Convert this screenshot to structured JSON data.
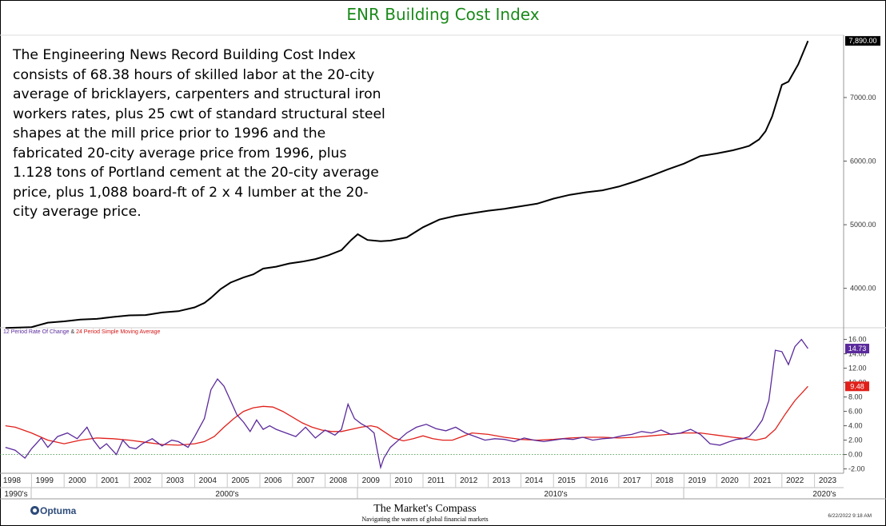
{
  "title": "ENR Building Cost Index",
  "description": "The Engineering News Record Building Cost Index consists of 68.38 hours of skilled labor at the 20-city average of bricklayers, carpenters and structural iron workers rates, plus 25 cwt of standard structural steel shapes at the mill price prior to 1996 and the fabricated 20-city average price from 1996, plus 1.128 tons of Portland cement at the 20-city average price, plus 1,088 board-ft of 2 x 4 lumber at the 20-city average price.",
  "indicator_label": {
    "part1": "12 Period Rate Of Change",
    "amp": " & ",
    "part2": "24 Period Simple Moving Average"
  },
  "footer": {
    "logo": "Optuma",
    "brand": "The Market's Compass",
    "tagline": "Navigating the waters of global financial markets",
    "timestamp": "6/22/2022 9:18 AM"
  },
  "colors": {
    "price": "#000000",
    "roc": "#5b2a9c",
    "sma": "#e0201a",
    "title": "#1a8a1a",
    "zero": "#2e8b2e"
  },
  "chart_data": [
    {
      "type": "line",
      "name": "price-panel",
      "ylim": [
        3380,
        7980
      ],
      "y_ticks": [
        4000,
        5000,
        6000,
        7000
      ],
      "y_tick_labels": [
        "4000.00",
        "5000.00",
        "6000.00",
        "7000.00"
      ],
      "last_value_label": "7,890.00",
      "x": [
        1997.7,
        1998.5,
        1999.0,
        1999.5,
        2000.0,
        2000.5,
        2001.0,
        2001.5,
        2002.0,
        2002.5,
        2003.0,
        2003.5,
        2003.8,
        2004.0,
        2004.3,
        2004.6,
        2005.0,
        2005.3,
        2005.6,
        2006.0,
        2006.4,
        2006.8,
        2007.2,
        2007.6,
        2008.0,
        2008.3,
        2008.5,
        2008.8,
        2009.2,
        2009.5,
        2009.8,
        2010.0,
        2010.5,
        2011.0,
        2011.5,
        2012.0,
        2012.5,
        2013.0,
        2013.5,
        2014.0,
        2014.5,
        2015.0,
        2015.5,
        2016.0,
        2016.5,
        2017.0,
        2017.5,
        2018.0,
        2018.5,
        2019.0,
        2019.5,
        2020.0,
        2020.3,
        2020.5,
        2020.8,
        2021.0,
        2021.2,
        2021.5,
        2021.7,
        2022.0,
        2022.3
      ],
      "y": [
        3377,
        3390,
        3460,
        3480,
        3510,
        3520,
        3550,
        3575,
        3580,
        3620,
        3640,
        3700,
        3770,
        3850,
        3990,
        4090,
        4170,
        4220,
        4310,
        4340,
        4390,
        4420,
        4460,
        4520,
        4600,
        4760,
        4850,
        4760,
        4740,
        4750,
        4780,
        4800,
        4960,
        5080,
        5140,
        5180,
        5220,
        5250,
        5290,
        5330,
        5410,
        5470,
        5510,
        5540,
        5600,
        5680,
        5770,
        5870,
        5960,
        6080,
        6120,
        6170,
        6210,
        6240,
        6340,
        6470,
        6700,
        7200,
        7250,
        7520,
        7890
      ]
    },
    {
      "type": "line",
      "name": "indicator-panel",
      "ylim": [
        -2.6,
        17.4
      ],
      "y_ticks": [
        -2,
        0,
        2,
        4,
        6,
        8,
        10,
        12,
        14,
        16
      ],
      "y_tick_labels": [
        "-2.00",
        "0.00",
        "2.00",
        "4.00",
        "6.00",
        "8.00",
        "10.00",
        "12.00",
        "14.00",
        "16.00"
      ],
      "roc_label": "14.73",
      "sma_label": "9.48",
      "series": [
        {
          "x": [
            1997.7,
            1998.0,
            1998.3,
            1998.5,
            1998.8,
            1999.0,
            1999.3,
            1999.6,
            1999.9,
            2000.2,
            2000.4,
            2000.6,
            2000.8,
            2001.0,
            2001.1,
            2001.3,
            2001.5,
            2001.7,
            2001.9,
            2002.2,
            2002.5,
            2002.8,
            2003.0,
            2003.3,
            2003.5,
            2003.8,
            2004.0,
            2004.2,
            2004.4,
            2004.6,
            2004.8,
            2005.0,
            2005.2,
            2005.4,
            2005.6,
            2005.8,
            2006.0,
            2006.3,
            2006.6,
            2006.9,
            2007.2,
            2007.5,
            2007.8,
            2008.0,
            2008.2,
            2008.4,
            2008.6,
            2008.8,
            2009.0,
            2009.1,
            2009.2,
            2009.3,
            2009.5,
            2009.8,
            2010.0,
            2010.3,
            2010.6,
            2010.9,
            2011.2,
            2011.5,
            2011.8,
            2012.1,
            2012.4,
            2012.7,
            2013.0,
            2013.3,
            2013.6,
            2013.9,
            2014.2,
            2014.5,
            2014.8,
            2015.1,
            2015.4,
            2015.7,
            2016.0,
            2016.3,
            2016.6,
            2016.9,
            2017.2,
            2017.5,
            2017.8,
            2018.1,
            2018.4,
            2018.7,
            2019.0,
            2019.3,
            2019.6,
            2019.9,
            2020.1,
            2020.3,
            2020.5,
            2020.7,
            2020.9,
            2021.1,
            2021.3,
            2021.5,
            2021.7,
            2021.9,
            2022.1,
            2022.3
          ],
          "y": [
            1.0,
            0.6,
            -0.5,
            0.8,
            2.3,
            1.0,
            2.5,
            3.0,
            2.2,
            3.8,
            2.0,
            0.8,
            1.5,
            0.5,
            0.0,
            2.0,
            1.0,
            0.8,
            1.5,
            2.2,
            1.2,
            2.0,
            1.8,
            1.0,
            2.5,
            5.0,
            9.0,
            10.5,
            9.5,
            7.5,
            5.5,
            4.5,
            3.2,
            4.8,
            3.5,
            4.0,
            3.5,
            3.0,
            2.5,
            3.8,
            2.3,
            3.4,
            2.7,
            3.5,
            7.0,
            5.0,
            4.3,
            3.8,
            3.0,
            0.5,
            -1.8,
            -0.5,
            1.0,
            2.2,
            3.0,
            3.8,
            4.2,
            3.6,
            3.3,
            3.8,
            3.0,
            2.5,
            2.0,
            2.2,
            2.1,
            1.8,
            2.3,
            2.0,
            1.8,
            2.0,
            2.2,
            2.1,
            2.4,
            2.0,
            2.2,
            2.3,
            2.6,
            2.8,
            3.2,
            3.0,
            3.4,
            2.8,
            3.0,
            3.5,
            2.8,
            1.5,
            1.3,
            1.8,
            2.1,
            2.2,
            2.5,
            3.5,
            4.8,
            7.5,
            14.5,
            14.3,
            12.5,
            15.0,
            16.0,
            14.73
          ]
        },
        {
          "x": [
            1997.7,
            1998.0,
            1998.5,
            1999.0,
            1999.5,
            2000.0,
            2000.5,
            2001.0,
            2001.5,
            2002.0,
            2002.5,
            2003.0,
            2003.5,
            2003.8,
            2004.1,
            2004.4,
            2004.7,
            2005.0,
            2005.3,
            2005.6,
            2005.9,
            2006.2,
            2006.5,
            2006.8,
            2007.1,
            2007.4,
            2007.7,
            2008.0,
            2008.3,
            2008.6,
            2008.9,
            2009.1,
            2009.3,
            2009.6,
            2009.9,
            2010.2,
            2010.5,
            2010.8,
            2011.1,
            2011.4,
            2011.7,
            2012.0,
            2012.5,
            2013.0,
            2013.5,
            2014.0,
            2014.5,
            2015.0,
            2015.5,
            2016.0,
            2016.5,
            2017.0,
            2017.5,
            2018.0,
            2018.5,
            2019.0,
            2019.5,
            2020.0,
            2020.4,
            2020.7,
            2021.0,
            2021.3,
            2021.6,
            2021.9,
            2022.3
          ],
          "y": [
            4.0,
            3.8,
            3.0,
            2.0,
            1.5,
            2.0,
            2.3,
            2.2,
            2.0,
            1.7,
            1.4,
            1.3,
            1.5,
            1.8,
            2.5,
            3.8,
            5.0,
            6.0,
            6.5,
            6.7,
            6.6,
            6.0,
            5.2,
            4.4,
            3.8,
            3.4,
            3.2,
            3.2,
            3.5,
            3.8,
            4.0,
            3.8,
            3.2,
            2.3,
            1.9,
            2.2,
            2.6,
            2.2,
            2.0,
            2.0,
            2.5,
            3.0,
            2.8,
            2.4,
            2.1,
            2.0,
            2.1,
            2.3,
            2.4,
            2.4,
            2.3,
            2.4,
            2.6,
            2.8,
            3.0,
            3.0,
            2.7,
            2.4,
            2.2,
            2.0,
            2.3,
            3.5,
            5.6,
            7.5,
            9.48
          ]
        }
      ]
    }
  ],
  "x_axis": {
    "years": [
      "1998",
      "1999",
      "2000",
      "2001",
      "2002",
      "2003",
      "2004",
      "2005",
      "2006",
      "2007",
      "2008",
      "2009",
      "2010",
      "2011",
      "2012",
      "2013",
      "2014",
      "2015",
      "2016",
      "2017",
      "2018",
      "2019",
      "2020",
      "2021",
      "2022",
      "2023"
    ],
    "decades": [
      "1990's",
      "2000's",
      "2010's",
      "2020's"
    ]
  }
}
